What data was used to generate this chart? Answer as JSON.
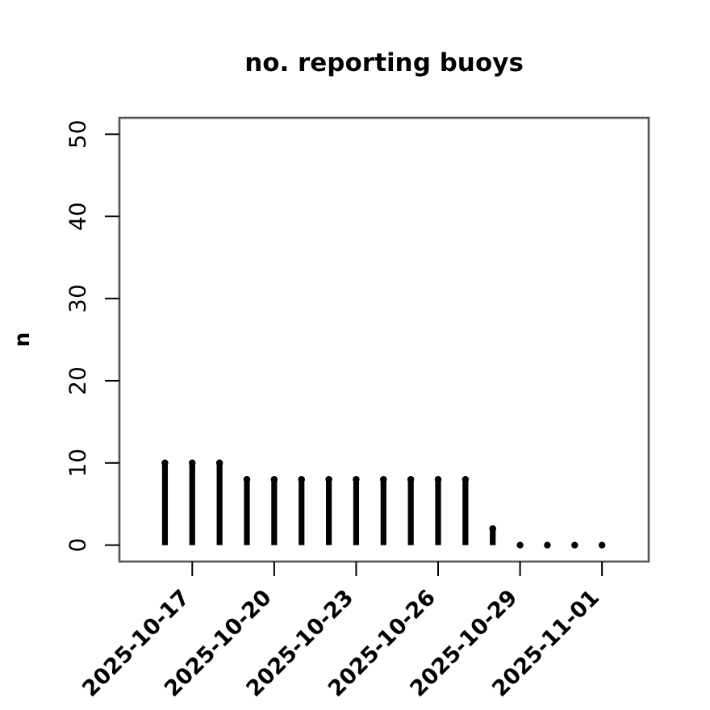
{
  "chart_data": {
    "type": "lollipop",
    "title": "no. reporting buoys",
    "ylabel": "n",
    "x": [
      "2025-10-16",
      "2025-10-17",
      "2025-10-18",
      "2025-10-19",
      "2025-10-20",
      "2025-10-21",
      "2025-10-22",
      "2025-10-23",
      "2025-10-24",
      "2025-10-25",
      "2025-10-26",
      "2025-10-27",
      "2025-10-28",
      "2025-10-29",
      "2025-10-30",
      "2025-10-31",
      "2025-11-01"
    ],
    "values": [
      10,
      10,
      10,
      8,
      8,
      8,
      8,
      8,
      8,
      8,
      8,
      8,
      2,
      0,
      0,
      0,
      0
    ],
    "color": "#000000",
    "marker": "circle",
    "xlim": [
      "2025-10-14T08:00",
      "2025-11-02T17:00"
    ],
    "xticks": [
      {
        "value": "2025-10-17",
        "label": "2025-10-17"
      },
      {
        "value": "2025-10-20",
        "label": "2025-10-20"
      },
      {
        "value": "2025-10-23",
        "label": "2025-10-23"
      },
      {
        "value": "2025-10-26",
        "label": "2025-10-26"
      },
      {
        "value": "2025-10-29",
        "label": "2025-10-29"
      },
      {
        "value": "2025-11-01",
        "label": "2025-11-01"
      }
    ],
    "ylim": [
      -2,
      52
    ],
    "yticks": [
      0,
      10,
      20,
      30,
      40,
      50
    ],
    "grid": false
  }
}
